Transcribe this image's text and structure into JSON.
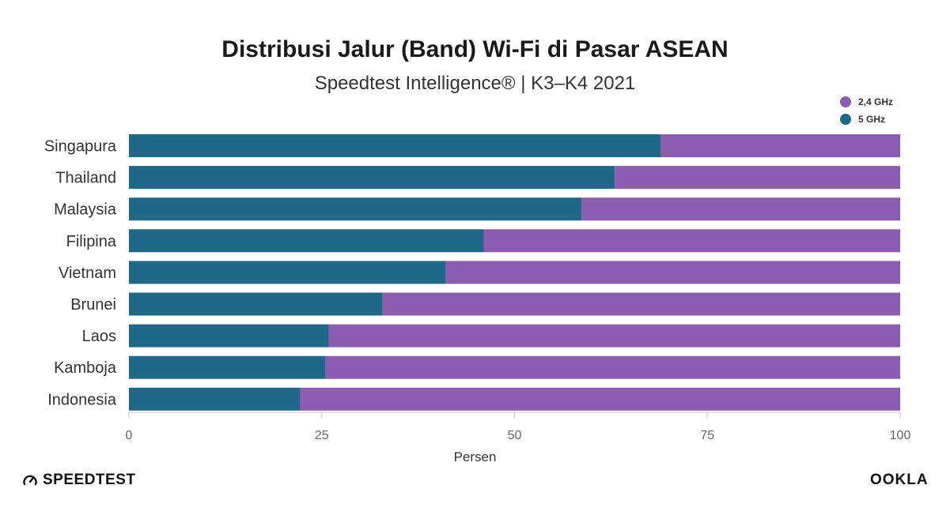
{
  "colors": {
    "band_5ghz": "#1f6888",
    "band_24ghz": "#8b5cb0",
    "axis": "#c8c8c8",
    "text": "#333333"
  },
  "footer": {
    "speedtest_logo_text": "SPEEDTEST",
    "speedtest_logo_icon": "speedometer-icon",
    "ookla_logo_text": "OOKLA"
  },
  "chart_data": {
    "type": "bar",
    "orientation": "horizontal",
    "stacked": true,
    "title": "Distribusi Jalur (Band) Wi-Fi di Pasar ASEAN",
    "subtitle": "Speedtest Intelligence® | K3–K4 2021",
    "xlabel": "Persen",
    "ylabel": "",
    "xlim": [
      0,
      100
    ],
    "xticks": [
      "0",
      "25",
      "50",
      "75",
      "100"
    ],
    "legend_position": "top-right",
    "grid": false,
    "categories": [
      "Singapura",
      "Thailand",
      "Malaysia",
      "Filipina",
      "Vietnam",
      "Brunei",
      "Laos",
      "Kamboja",
      "Indonesia"
    ],
    "series": [
      {
        "name": "5 GHz",
        "color": "#1f6888",
        "values": [
          69,
          63,
          58.7,
          46,
          41.1,
          32.9,
          25.9,
          25.5,
          22.2
        ]
      },
      {
        "name": "2,4 GHz",
        "color": "#8b5cb0",
        "values": [
          31,
          37,
          41.3,
          54,
          58.9,
          67.1,
          74.1,
          74.5,
          77.8
        ]
      }
    ],
    "legend": [
      "2,4 GHz",
      "5 GHz"
    ]
  }
}
